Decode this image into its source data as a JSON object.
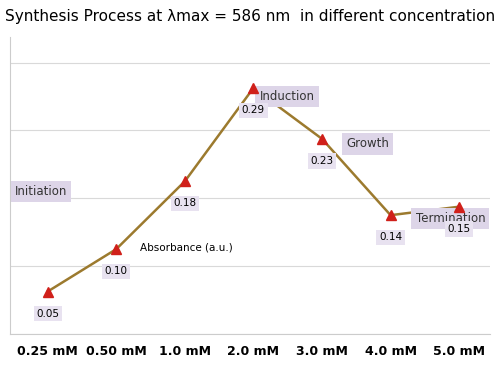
{
  "chart_data": {
    "type": "line",
    "title": "Synthesis Process at λmax = 586 nm  in different concentration",
    "categories": [
      "0.25 mM",
      "0.50 mM",
      "1.0 mM",
      "2.0 mM",
      "3.0 mM",
      "4.0 mM",
      "5.0 mM"
    ],
    "values": [
      0.05,
      0.1,
      0.18,
      0.29,
      0.23,
      0.14,
      0.15
    ],
    "value_labels": [
      "0.05",
      "0.10",
      "0.18",
      "0.29",
      "0.23",
      "0.14",
      "0.15"
    ],
    "data_labels": true,
    "y_label": "Absorbance (a.u.)",
    "annotations": [
      "Initiation",
      "Induction",
      "Growth",
      "Termination"
    ],
    "color": "#9c7a2e",
    "marker": "triangle",
    "ylim": [
      0,
      0.35
    ],
    "yticks": [
      0,
      0.08,
      0.16,
      0.24,
      0.32
    ],
    "grid": true,
    "tick_labels": "x"
  }
}
